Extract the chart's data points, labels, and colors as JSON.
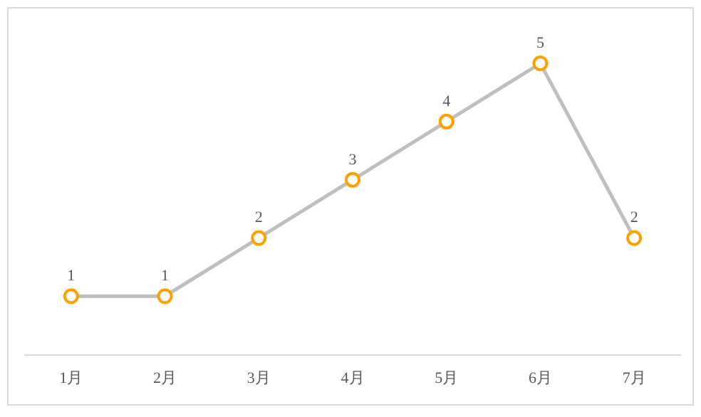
{
  "chart_data": {
    "type": "line",
    "categories": [
      "1月",
      "2月",
      "3月",
      "4月",
      "5月",
      "6月",
      "7月"
    ],
    "series": [
      {
        "color": "#bfbfbf",
        "colors": [
          "#ffa000",
          "#ffa000",
          "#ffa000",
          "#ffa000",
          "#ffa000",
          "#ffa000",
          "#ffa000"
        ],
        "values": [
          1,
          1,
          2,
          3,
          4,
          5,
          2
        ]
      }
    ],
    "marker": "circle",
    "line_style": "solid",
    "data_labels": true
  }
}
